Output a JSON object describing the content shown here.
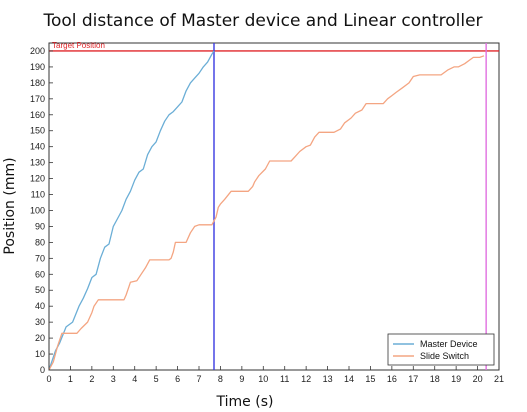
{
  "chart_data": {
    "type": "line",
    "title": "Tool distance of Master device and Linear controller",
    "xlabel": "Time (s)",
    "ylabel": "Position (mm)",
    "xlim": [
      0,
      21
    ],
    "ylim": [
      0,
      205
    ],
    "xticks": [
      0,
      1,
      2,
      3,
      4,
      5,
      6,
      7,
      8,
      9,
      10,
      11,
      12,
      13,
      14,
      15,
      16,
      17,
      18,
      19,
      20,
      21
    ],
    "yticks": [
      0,
      10,
      20,
      30,
      40,
      50,
      60,
      70,
      80,
      90,
      100,
      110,
      120,
      130,
      140,
      150,
      160,
      170,
      180,
      190,
      200
    ],
    "grid": false,
    "legend_position": "bottom-right",
    "series": [
      {
        "name": "Master Device",
        "color": "#6baed6",
        "x": [
          0,
          0.3,
          0.5,
          0.8,
          1.1,
          1.4,
          1.6,
          1.8,
          2.0,
          2.2,
          2.4,
          2.6,
          2.8,
          3.0,
          3.2,
          3.4,
          3.6,
          3.8,
          4.0,
          4.2,
          4.4,
          4.6,
          4.8,
          5.0,
          5.2,
          5.4,
          5.6,
          5.8,
          6.0,
          6.2,
          6.4,
          6.6,
          6.8,
          7.0,
          7.2,
          7.4,
          7.6,
          7.7
        ],
        "y": [
          0,
          12,
          17,
          27,
          30,
          40,
          45,
          51,
          58,
          60,
          70,
          77,
          79,
          90,
          95,
          100,
          107,
          112,
          119,
          124,
          126,
          135,
          140,
          143,
          150,
          156,
          160,
          162,
          165,
          168,
          175,
          180,
          183,
          186,
          190,
          193,
          198,
          200
        ]
      },
      {
        "name": "Slide Switch",
        "color": "#f4a582",
        "x": [
          0,
          0.2,
          0.4,
          0.6,
          1.3,
          1.5,
          1.8,
          2.0,
          2.1,
          2.3,
          2.5,
          3.5,
          3.6,
          3.7,
          3.8,
          4.1,
          4.3,
          4.5,
          4.7,
          5.6,
          5.7,
          5.8,
          5.9,
          6.4,
          6.6,
          6.8,
          7.0,
          7.6,
          7.8,
          7.9,
          8.0,
          8.2,
          8.5,
          8.6,
          9.3,
          9.5,
          9.6,
          9.8,
          10.1,
          10.3,
          10.6,
          10.8,
          11.3,
          11.5,
          11.7,
          12.0,
          12.2,
          12.4,
          12.6,
          12.8,
          13.1,
          13.3,
          13.6,
          13.8,
          14.1,
          14.3,
          14.6,
          14.8,
          15.1,
          15.3,
          15.6,
          15.8,
          16.0,
          16.2,
          16.5,
          16.8,
          17.0,
          17.3,
          17.6,
          17.9,
          18.3,
          18.6,
          18.9,
          19.1,
          19.4,
          19.6,
          19.8,
          20.1,
          20.3
        ],
        "y": [
          0,
          5,
          15,
          23,
          23,
          26,
          30,
          36,
          40,
          44,
          44,
          44,
          47,
          51,
          55,
          56,
          60,
          64,
          69,
          69,
          70,
          74,
          80,
          80,
          86,
          90,
          91,
          91,
          96,
          102,
          104,
          107,
          112,
          112,
          112,
          115,
          118,
          122,
          126,
          131,
          131,
          131,
          131,
          134,
          137,
          140,
          141,
          146,
          149,
          149,
          149,
          149,
          151,
          155,
          158,
          161,
          163,
          167,
          167,
          167,
          167,
          170,
          172,
          174,
          177,
          180,
          184,
          185,
          185,
          185,
          185,
          188,
          190,
          190,
          192,
          194,
          196,
          196,
          197
        ]
      }
    ],
    "reference_lines": [
      {
        "axis": "y",
        "value": 200,
        "label": "Target Position",
        "color": "#e0262a"
      },
      {
        "axis": "x",
        "value": 7.7,
        "color": "#3a3ae0"
      },
      {
        "axis": "x",
        "value": 20.4,
        "color": "#e070e0"
      }
    ]
  }
}
